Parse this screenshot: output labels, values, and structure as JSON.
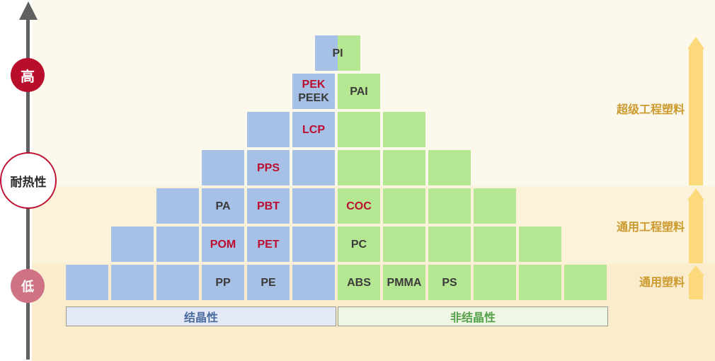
{
  "axis": {
    "title": "耐热性",
    "high_label": "高",
    "low_label": "低"
  },
  "right_categories": {
    "super_engineering": "超级工程塑料",
    "general_engineering": "通用工程塑料",
    "general": "通用塑料"
  },
  "footer": {
    "crystalline": "结晶性",
    "non_crystalline": "非结晶性"
  },
  "colors": {
    "blue": "#a7c1e6",
    "green": "#b5e793",
    "red_text": "#bb0d2f",
    "dark_text": "#3b3b3b",
    "band_a": "#fdf8ec",
    "band_b": "#fcf1d9",
    "band_c": "#faeccd",
    "amber": "#fcda7c",
    "amber_text": "#cc9a2e",
    "axis_gray": "#606060",
    "high_bg": "#b90d2c",
    "low_bg": "#cf7384",
    "circle_border": "#c01034",
    "cryst_bg": "#e3e9f6",
    "cryst_text": "#4a6b9d",
    "noncryst_bg": "#eef7e3",
    "noncryst_text": "#55a04a"
  },
  "pyramid": {
    "rows": [
      {
        "cells": [
          {
            "col": 5.5,
            "type": "split",
            "lines": [
              {
                "text": "PI",
                "red": false
              }
            ]
          }
        ]
      },
      {
        "cells": [
          {
            "col": 5,
            "type": "blue",
            "lines": [
              {
                "text": "PEK",
                "red": true
              },
              {
                "text": "PEEK",
                "red": false
              }
            ]
          },
          {
            "col": 6,
            "type": "green",
            "lines": [
              {
                "text": "PAI",
                "red": false
              }
            ]
          }
        ]
      },
      {
        "cells": [
          {
            "col": 4,
            "type": "blue",
            "lines": []
          },
          {
            "col": 5,
            "type": "blue",
            "lines": [
              {
                "text": "LCP",
                "red": true
              }
            ]
          },
          {
            "col": 6,
            "type": "green",
            "lines": []
          },
          {
            "col": 7,
            "type": "green",
            "lines": []
          }
        ]
      },
      {
        "cells": [
          {
            "col": 3,
            "type": "blue",
            "lines": []
          },
          {
            "col": 4,
            "type": "blue",
            "lines": [
              {
                "text": "PPS",
                "red": true
              }
            ]
          },
          {
            "col": 5,
            "type": "blue",
            "lines": []
          },
          {
            "col": 6,
            "type": "green",
            "lines": []
          },
          {
            "col": 7,
            "type": "green",
            "lines": []
          },
          {
            "col": 8,
            "type": "green",
            "lines": []
          }
        ]
      },
      {
        "cells": [
          {
            "col": 2,
            "type": "blue",
            "lines": []
          },
          {
            "col": 3,
            "type": "blue",
            "lines": [
              {
                "text": "PA",
                "red": false
              }
            ]
          },
          {
            "col": 4,
            "type": "blue",
            "lines": [
              {
                "text": "PBT",
                "red": true
              }
            ]
          },
          {
            "col": 5,
            "type": "blue",
            "lines": []
          },
          {
            "col": 6,
            "type": "green",
            "lines": [
              {
                "text": "COC",
                "red": true
              }
            ]
          },
          {
            "col": 7,
            "type": "green",
            "lines": []
          },
          {
            "col": 8,
            "type": "green",
            "lines": []
          },
          {
            "col": 9,
            "type": "green",
            "lines": []
          }
        ]
      },
      {
        "cells": [
          {
            "col": 1,
            "type": "blue",
            "lines": []
          },
          {
            "col": 2,
            "type": "blue",
            "lines": []
          },
          {
            "col": 3,
            "type": "blue",
            "lines": [
              {
                "text": "POM",
                "red": true
              }
            ]
          },
          {
            "col": 4,
            "type": "blue",
            "lines": [
              {
                "text": "PET",
                "red": true
              }
            ]
          },
          {
            "col": 5,
            "type": "blue",
            "lines": []
          },
          {
            "col": 6,
            "type": "green",
            "lines": [
              {
                "text": "PC",
                "red": false
              }
            ]
          },
          {
            "col": 7,
            "type": "green",
            "lines": []
          },
          {
            "col": 8,
            "type": "green",
            "lines": []
          },
          {
            "col": 9,
            "type": "green",
            "lines": []
          },
          {
            "col": 10,
            "type": "green",
            "lines": []
          }
        ]
      },
      {
        "cells": [
          {
            "col": 0,
            "type": "blue",
            "lines": []
          },
          {
            "col": 1,
            "type": "blue",
            "lines": []
          },
          {
            "col": 2,
            "type": "blue",
            "lines": []
          },
          {
            "col": 3,
            "type": "blue",
            "lines": [
              {
                "text": "PP",
                "red": false
              }
            ]
          },
          {
            "col": 4,
            "type": "blue",
            "lines": [
              {
                "text": "PE",
                "red": false
              }
            ]
          },
          {
            "col": 5,
            "type": "blue",
            "lines": []
          },
          {
            "col": 6,
            "type": "green",
            "lines": [
              {
                "text": "ABS",
                "red": false
              }
            ]
          },
          {
            "col": 7,
            "type": "green",
            "lines": [
              {
                "text": "PMMA",
                "red": false
              }
            ]
          },
          {
            "col": 8,
            "type": "green",
            "lines": [
              {
                "text": "PS",
                "red": false
              }
            ]
          },
          {
            "col": 9,
            "type": "green",
            "lines": []
          },
          {
            "col": 10,
            "type": "green",
            "lines": []
          },
          {
            "col": 11,
            "type": "green",
            "lines": []
          }
        ]
      }
    ]
  }
}
